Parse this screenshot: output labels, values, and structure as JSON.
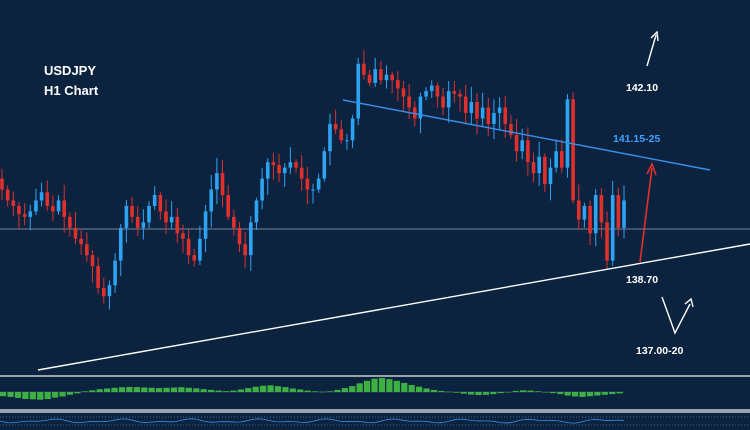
{
  "chart_data": {
    "type": "candlestick",
    "title": [
      "USDJPY",
      "H1 Chart"
    ],
    "ylim": [
      136.2,
      142.6
    ],
    "colors": {
      "background": "#0c2340",
      "bull": "#2ea3f2",
      "bear": "#e0302c",
      "resistance": "#3a8fe8",
      "support": "#ffffff",
      "hline": "#9aa7b4",
      "arrow_up_red": "#e0302c",
      "arrow_white": "#ffffff",
      "label_blue": "#3ea0ff",
      "label_white": "#ffffff",
      "macd_pos": "#3cb043",
      "panel_border": "#c7ccd4"
    },
    "candles_close": [
      139.5,
      139.3,
      139.2,
      139.05,
      139.0,
      139.1,
      139.3,
      139.45,
      139.2,
      139.1,
      139.3,
      139.0,
      138.8,
      138.6,
      138.5,
      138.3,
      138.1,
      137.7,
      137.55,
      137.75,
      138.2,
      138.8,
      139.2,
      139.0,
      138.8,
      138.9,
      139.2,
      139.4,
      139.1,
      138.9,
      139.0,
      138.7,
      138.6,
      138.3,
      138.2,
      138.6,
      139.1,
      139.5,
      139.8,
      139.4,
      139.0,
      138.8,
      138.5,
      138.3,
      138.9,
      139.3,
      139.7,
      140.0,
      139.95,
      139.8,
      139.9,
      140.0,
      139.9,
      139.7,
      139.5,
      139.5,
      139.7,
      140.2,
      140.7,
      140.6,
      140.4,
      140.4,
      140.8,
      141.8,
      141.6,
      141.45,
      141.7,
      141.5,
      141.6,
      141.5,
      141.35,
      141.2,
      141.0,
      140.8,
      141.2,
      141.3,
      141.4,
      141.2,
      141.0,
      141.3,
      141.25,
      141.2,
      140.9,
      141.1,
      140.8,
      141.0,
      140.7,
      140.9,
      141.0,
      140.7,
      140.5,
      140.2,
      140.4,
      140.0,
      139.8,
      140.1,
      139.6,
      139.9,
      140.2,
      139.9,
      141.15,
      139.3,
      138.95,
      139.2,
      138.7,
      139.4,
      138.9,
      138.2,
      139.4,
      138.8,
      139.3
    ],
    "candles_open": [
      139.7,
      139.5,
      139.3,
      139.2,
      139.05,
      139.0,
      139.1,
      139.3,
      139.45,
      139.2,
      139.1,
      139.3,
      139.0,
      138.8,
      138.6,
      138.5,
      138.3,
      138.1,
      137.7,
      137.55,
      137.75,
      138.2,
      138.8,
      139.2,
      139.0,
      138.8,
      138.9,
      139.2,
      139.4,
      139.1,
      138.9,
      139.0,
      138.7,
      138.6,
      138.3,
      138.2,
      138.6,
      139.1,
      139.5,
      139.8,
      139.4,
      139.0,
      138.8,
      138.5,
      138.3,
      138.9,
      139.3,
      139.7,
      140.0,
      139.95,
      139.8,
      139.9,
      140.0,
      139.9,
      139.7,
      139.5,
      139.5,
      139.7,
      140.2,
      140.7,
      140.6,
      140.4,
      140.4,
      140.8,
      141.8,
      141.6,
      141.45,
      141.7,
      141.5,
      141.6,
      141.5,
      141.35,
      141.2,
      141.0,
      140.8,
      141.2,
      141.3,
      141.4,
      141.2,
      141.0,
      141.3,
      141.25,
      141.2,
      140.9,
      141.1,
      140.8,
      141.0,
      140.7,
      140.9,
      141.0,
      140.7,
      140.5,
      140.2,
      140.4,
      140.0,
      139.8,
      140.1,
      139.6,
      139.9,
      140.2,
      139.9,
      141.15,
      139.3,
      138.95,
      139.2,
      138.7,
      139.4,
      138.9,
      138.2,
      139.4,
      138.8
    ],
    "candle_x_range": [
      2,
      624
    ],
    "macd_hist": [
      -0.3,
      -0.35,
      -0.42,
      -0.5,
      -0.52,
      -0.55,
      -0.5,
      -0.4,
      -0.32,
      -0.2,
      -0.1,
      0.05,
      0.12,
      0.2,
      0.25,
      0.3,
      0.34,
      0.36,
      0.35,
      0.32,
      0.3,
      0.28,
      0.3,
      0.32,
      0.34,
      0.3,
      0.26,
      0.2,
      0.15,
      0.1,
      0.06,
      0.1,
      0.18,
      0.28,
      0.38,
      0.45,
      0.48,
      0.42,
      0.35,
      0.25,
      0.18,
      0.1,
      0.05,
      0.02,
      0.05,
      0.15,
      0.28,
      0.42,
      0.62,
      0.8,
      0.95,
      1.0,
      0.92,
      0.8,
      0.65,
      0.5,
      0.38,
      0.25,
      0.15,
      0.08,
      0.02,
      -0.05,
      -0.12,
      -0.18,
      -0.22,
      -0.2,
      -0.15,
      -0.08,
      0.0,
      0.08,
      0.12,
      0.1,
      0.05,
      -0.02,
      -0.08,
      -0.15,
      -0.25,
      -0.32,
      -0.35,
      -0.3,
      -0.25,
      -0.2,
      -0.15,
      -0.1
    ],
    "lines": {
      "resistance": {
        "from": [
          343,
          100
        ],
        "to": [
          710,
          170
        ]
      },
      "support": {
        "from": [
          38,
          370
        ],
        "to": [
          750,
          244
        ]
      },
      "horizontal": {
        "y": 229
      }
    },
    "levels": [
      {
        "label": "142.10"
      },
      {
        "label": "141.15-25"
      },
      {
        "label": "138.70"
      },
      {
        "label": "137.00-20"
      }
    ]
  }
}
